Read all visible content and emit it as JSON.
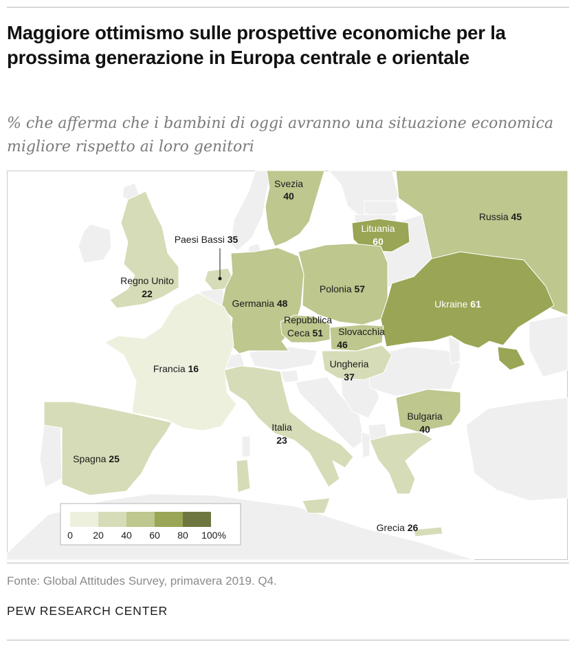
{
  "header": {
    "title": "Maggiore ottimismo sulle prospettive economiche per la prossima generazione in Europa centrale e orientale",
    "subtitle": "% che afferma che i bambini di oggi avranno una situazione economica migliore rispetto ai loro genitori"
  },
  "colors": {
    "sea": "#ffffff",
    "no_data_land": "#efefef",
    "border": "#ffffff",
    "scale": [
      "#eef0de",
      "#d6dcb7",
      "#bdc78e",
      "#9aa555",
      "#6f7740"
    ],
    "label_dark": "#1a1a1a",
    "label_light": "#ffffff"
  },
  "countries": [
    {
      "name": "Svezia",
      "value": "40",
      "pct": 40
    },
    {
      "name": "Russia",
      "value": "45",
      "pct": 45
    },
    {
      "name": "Lituania",
      "value": "60",
      "pct": 60
    },
    {
      "name": "Paesi Bassi",
      "value": "35",
      "pct": 35
    },
    {
      "name": "Regno Unito",
      "value": "22",
      "pct": 22
    },
    {
      "name": "Germania",
      "value": "48",
      "pct": 48
    },
    {
      "name": "Polonia",
      "value": "57",
      "pct": 57
    },
    {
      "name": "Ukraine",
      "value": "61",
      "pct": 61
    },
    {
      "name": "Repubblica Ceca",
      "value": "51",
      "pct": 51
    },
    {
      "name": "Slovacchia",
      "value": "46",
      "pct": 46
    },
    {
      "name": "Francia",
      "value": "16",
      "pct": 16
    },
    {
      "name": "Ungheria",
      "value": "37",
      "pct": 37
    },
    {
      "name": "Italia",
      "value": "23",
      "pct": 23
    },
    {
      "name": "Bulgaria",
      "value": "40",
      "pct": 40
    },
    {
      "name": "Spagna",
      "value": "25",
      "pct": 25
    },
    {
      "name": "Grecia",
      "value": "26",
      "pct": 26
    }
  ],
  "legend": {
    "ticks": [
      "0",
      "20",
      "40",
      "60",
      "80",
      "100%"
    ]
  },
  "footer": {
    "source": "Fonte: Global Attitudes Survey, primavera 2019. Q4.",
    "brand": "PEW RESEARCH CENTER"
  }
}
